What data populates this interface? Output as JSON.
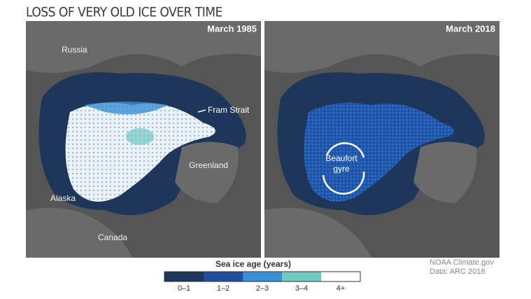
{
  "title": "LOSS OF VERY OLD ICE OVER TIME",
  "panels": [
    {
      "title": "March 1985",
      "labels": [
        "Russia",
        "Fram Strait",
        "Greenland",
        "Alaska",
        "Canada"
      ]
    },
    {
      "title": "March 2018",
      "labels": [
        "Beaufort",
        "gyre"
      ]
    }
  ],
  "legend": {
    "title": "Sea ice age (years)",
    "items": [
      {
        "label": "0–1",
        "color": "#1d365a"
      },
      {
        "label": "1–2",
        "color": "#1f4f9c"
      },
      {
        "label": "2–3",
        "color": "#3a8ed2"
      },
      {
        "label": "3–4",
        "color": "#6fc9c1"
      },
      {
        "label": "4+",
        "color": "#ffffff"
      }
    ]
  },
  "credits": [
    "NOAA Climate.gov",
    "Data: ARC 2018"
  ]
}
